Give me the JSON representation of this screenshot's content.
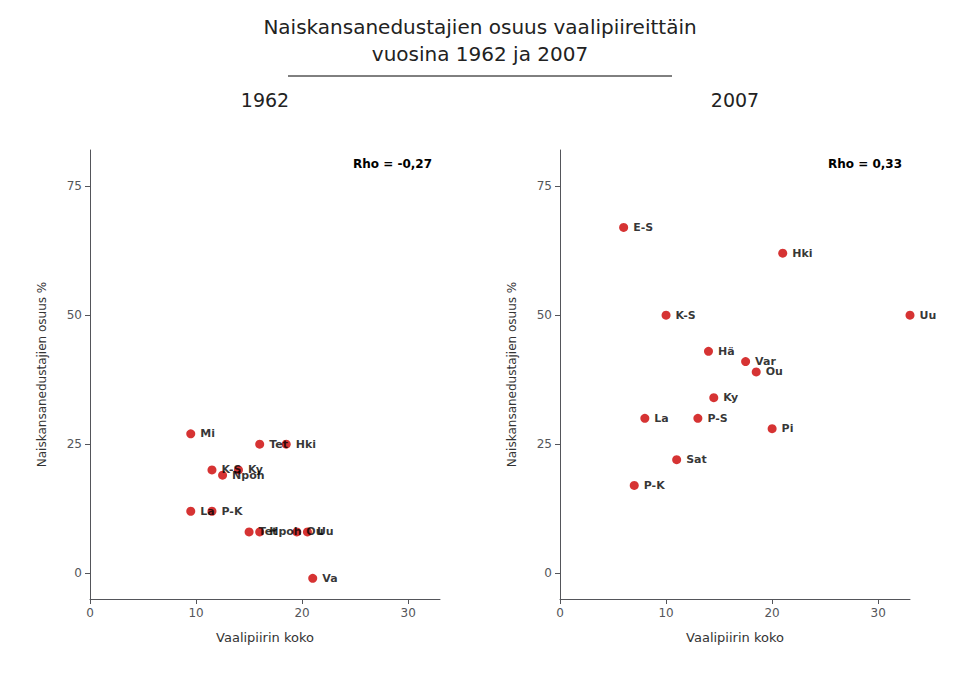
{
  "title": "Naiskansanedustajien osuus vaalipiireittäin\nvuosina 1962 ja 2007",
  "chart_data": [
    {
      "type": "scatter",
      "title": "1962",
      "xlabel": "Vaalipiirin koko",
      "ylabel": "Naiskansanedustajien osuus %",
      "annotation": "Rho = -0,27",
      "color": "#cc0000",
      "grid": false,
      "xlim": [
        0,
        33
      ],
      "ylim": [
        -5,
        82
      ],
      "xticks": [
        0,
        10,
        20,
        30
      ],
      "yticks": [
        0,
        25,
        50,
        75
      ],
      "labels": [
        "Mi",
        "Tet",
        "Hki",
        "K-S",
        "Ky",
        "Npoh",
        "La",
        "P-K",
        "Hpoh",
        "Ou",
        "Tet",
        "Va",
        "Uu"
      ],
      "x": [
        9.5,
        16.0,
        18.5,
        11.5,
        14.0,
        12.5,
        9.5,
        11.5,
        16.0,
        19.5,
        15.0,
        21.0,
        20.5
      ],
      "values": [
        27,
        25,
        25,
        20,
        20,
        19,
        12,
        12,
        8,
        8,
        8,
        -1,
        8
      ]
    },
    {
      "type": "scatter",
      "title": "2007",
      "xlabel": "Vaalipiirin koko",
      "ylabel": "Naiskansanedustajien osuus %",
      "annotation": "Rho = 0,33",
      "color": "#cc0000",
      "grid": false,
      "xlim": [
        0,
        33
      ],
      "ylim": [
        -5,
        82
      ],
      "xticks": [
        0,
        10,
        20,
        30
      ],
      "yticks": [
        0,
        25,
        50,
        75
      ],
      "labels": [
        "E-S",
        "Hki",
        "K-S",
        "Uu",
        "Hä",
        "Var",
        "Ou",
        "Ky",
        "La",
        "P-S",
        "Pi",
        "Sat",
        "P-K"
      ],
      "x": [
        6.0,
        21.0,
        10.0,
        33.0,
        14.0,
        17.5,
        18.5,
        14.5,
        8.0,
        13.0,
        20.0,
        11.0,
        7.0
      ],
      "values": [
        67,
        62,
        50,
        50,
        43,
        41,
        39,
        34,
        30,
        30,
        28,
        22,
        17
      ]
    }
  ]
}
